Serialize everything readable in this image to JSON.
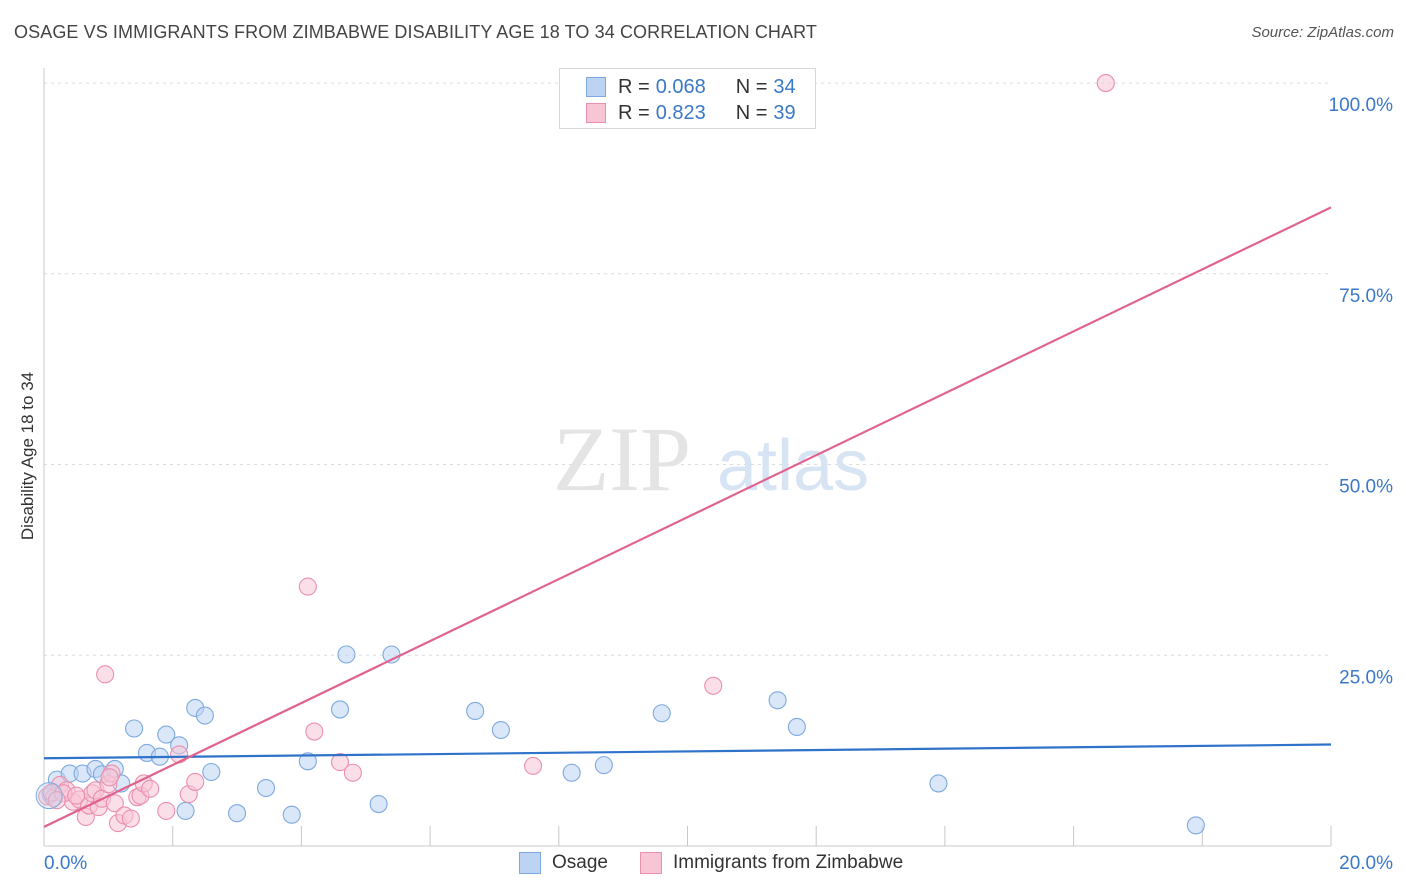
{
  "header": {
    "title": "OSAGE VS IMMIGRANTS FROM ZIMBABWE DISABILITY AGE 18 TO 34 CORRELATION CHART",
    "source": "Source: ZipAtlas.com"
  },
  "watermark": {
    "zip": "ZIP",
    "atlas": "atlas"
  },
  "legend": {
    "r_label": "R =",
    "n_label": "N =",
    "rows": [
      {
        "name": "Osage",
        "r": "0.068",
        "n": "34"
      },
      {
        "name": "Immigrants from Zimbabwe",
        "r": "0.823",
        "n": "39"
      }
    ]
  },
  "colors": {
    "osage_fill": "#bcd3f2",
    "osage_stroke": "#7ea9e0",
    "osage_line": "#2f72c9",
    "zimbabwe_fill": "#f8c5d5",
    "zimbabwe_stroke": "#eb8fae",
    "zimbabwe_line": "#e0638f",
    "axis_value": "#3a78c8"
  },
  "chart_data": {
    "type": "scatter",
    "title": "OSAGE VS IMMIGRANTS FROM ZIMBABWE DISABILITY AGE 18 TO 34 CORRELATION CHART",
    "xlabel": "",
    "ylabel": "Disability Age 18 to 34",
    "xlim": [
      0,
      20
    ],
    "ylim": [
      0,
      100
    ],
    "x_tick_labels": [
      "0.0%",
      "20.0%"
    ],
    "y_ticks": [
      25,
      50,
      75,
      100
    ],
    "y_tick_labels": [
      "25.0%",
      "50.0%",
      "75.0%",
      "100.0%"
    ],
    "grid": true,
    "series": [
      {
        "name": "Osage",
        "points": [
          [
            0.1,
            6.8
          ],
          [
            0.2,
            8.7
          ],
          [
            0.4,
            9.5
          ],
          [
            0.6,
            9.5
          ],
          [
            0.8,
            10.1
          ],
          [
            0.9,
            9.4
          ],
          [
            1.1,
            10.1
          ],
          [
            1.2,
            8.2
          ],
          [
            1.4,
            15.4
          ],
          [
            1.6,
            12.2
          ],
          [
            1.8,
            11.7
          ],
          [
            1.9,
            14.6
          ],
          [
            2.1,
            13.2
          ],
          [
            2.2,
            4.6
          ],
          [
            2.35,
            18.1
          ],
          [
            2.5,
            17.1
          ],
          [
            2.6,
            9.7
          ],
          [
            3.0,
            4.3
          ],
          [
            3.45,
            7.6
          ],
          [
            3.85,
            4.1
          ],
          [
            4.1,
            11.1
          ],
          [
            4.6,
            17.9
          ],
          [
            4.7,
            25.1
          ],
          [
            5.2,
            5.5
          ],
          [
            5.4,
            25.1
          ],
          [
            6.7,
            17.7
          ],
          [
            7.1,
            15.2
          ],
          [
            8.2,
            9.6
          ],
          [
            8.7,
            10.6
          ],
          [
            9.6,
            17.4
          ],
          [
            11.4,
            19.1
          ],
          [
            11.7,
            15.6
          ],
          [
            13.9,
            8.2
          ],
          [
            17.9,
            2.7
          ]
        ],
        "trend": {
          "x": [
            0,
            20
          ],
          "y": [
            11.5,
            13.3
          ]
        }
      },
      {
        "name": "Immigrants from Zimbabwe",
        "points": [
          [
            0.05,
            6.5
          ],
          [
            0.15,
            6.3
          ],
          [
            0.25,
            8.0
          ],
          [
            0.35,
            7.3
          ],
          [
            0.45,
            5.8
          ],
          [
            0.55,
            6.1
          ],
          [
            0.65,
            3.8
          ],
          [
            0.7,
            5.3
          ],
          [
            0.75,
            6.9
          ],
          [
            0.8,
            7.3
          ],
          [
            0.85,
            5.1
          ],
          [
            0.9,
            6.2
          ],
          [
            0.95,
            22.5
          ],
          [
            1.0,
            8.1
          ],
          [
            1.05,
            9.5
          ],
          [
            1.1,
            5.6
          ],
          [
            1.15,
            3.0
          ],
          [
            1.25,
            4.0
          ],
          [
            1.35,
            3.6
          ],
          [
            1.45,
            6.4
          ],
          [
            1.5,
            6.6
          ],
          [
            1.55,
            8.2
          ],
          [
            1.65,
            7.5
          ],
          [
            1.9,
            4.6
          ],
          [
            2.1,
            12.0
          ],
          [
            2.25,
            6.8
          ],
          [
            2.35,
            8.4
          ],
          [
            4.1,
            34.0
          ],
          [
            4.2,
            15.0
          ],
          [
            4.6,
            11.0
          ],
          [
            4.8,
            9.6
          ],
          [
            7.6,
            10.5
          ],
          [
            10.4,
            21.0
          ],
          [
            16.5,
            100.0
          ],
          [
            0.12,
            7.0
          ],
          [
            0.3,
            6.9
          ],
          [
            0.5,
            6.6
          ],
          [
            1.02,
            9.0
          ],
          [
            0.2,
            6.0
          ]
        ],
        "trend": {
          "x": [
            0,
            20
          ],
          "y": [
            2.5,
            83.7
          ]
        }
      }
    ]
  },
  "bottom_legend": [
    "Osage",
    "Immigrants from Zimbabwe"
  ]
}
